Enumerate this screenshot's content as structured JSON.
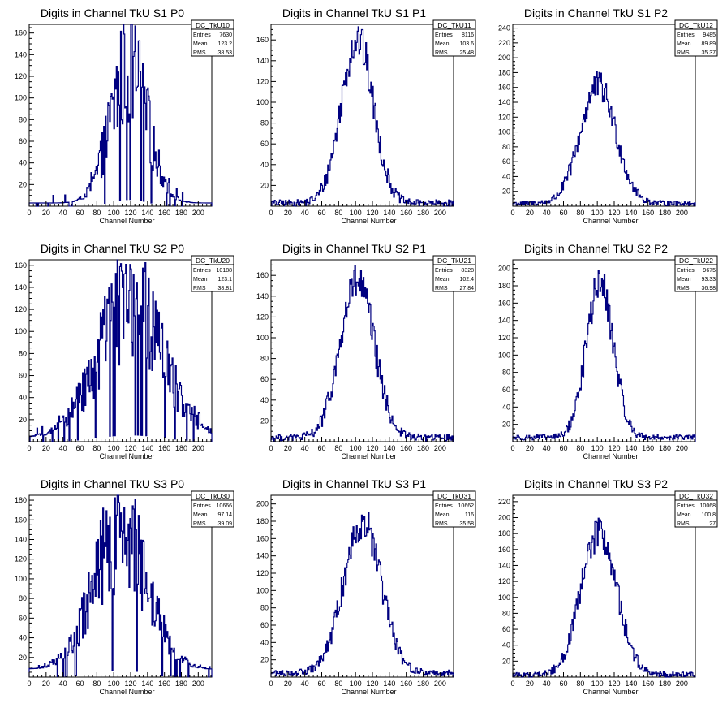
{
  "chart_data": [
    {
      "type": "histogram",
      "title": "Digits in Channel TkU S1 P0",
      "xlabel": "Channel Number",
      "xlim": [
        0,
        216
      ],
      "ylim": [
        0,
        168
      ],
      "xticks": [
        0,
        20,
        40,
        60,
        80,
        100,
        120,
        140,
        160,
        180,
        200
      ],
      "yticks": [
        20,
        40,
        60,
        80,
        100,
        120,
        140,
        160
      ],
      "stats": {
        "name": "DC_TkU10",
        "entries": "7630",
        "mean": "123.2",
        "rms": "38.53"
      },
      "shape": {
        "kind": "spiky",
        "mu": 118,
        "sigma": 22,
        "peak": 125,
        "base": 3
      }
    },
    {
      "type": "histogram",
      "title": "Digits in Channel TkU S1 P1",
      "xlabel": "Channel Number",
      "xlim": [
        0,
        216
      ],
      "ylim": [
        0,
        175
      ],
      "xticks": [
        0,
        20,
        40,
        60,
        80,
        100,
        120,
        140,
        160,
        180,
        200
      ],
      "yticks": [
        20,
        40,
        60,
        80,
        100,
        120,
        140,
        160
      ],
      "stats": {
        "name": "DC_TkU11",
        "entries": "8116",
        "mean": "103.6",
        "rms": "25.48"
      },
      "shape": {
        "kind": "gauss",
        "mu": 102,
        "sigma": 19,
        "peak": 158,
        "base": 3
      }
    },
    {
      "type": "histogram",
      "title": "Digits in Channel TkU S1 P2",
      "xlabel": "Channel Number",
      "xlim": [
        0,
        216
      ],
      "ylim": [
        0,
        245
      ],
      "xticks": [
        0,
        20,
        40,
        60,
        80,
        100,
        120,
        140,
        160,
        180,
        200
      ],
      "yticks": [
        20,
        40,
        60,
        80,
        100,
        120,
        140,
        160,
        180,
        200,
        220,
        240
      ],
      "stats": {
        "name": "DC_TkU12",
        "entries": "9485",
        "mean": "89.89",
        "rms": "35.37"
      },
      "shape": {
        "kind": "gauss",
        "mu": 101,
        "sigma": 21,
        "peak": 158,
        "base": 4
      }
    },
    {
      "type": "histogram",
      "title": "Digits in Channel TkU S2 P0",
      "xlabel": "Channel Number",
      "xlim": [
        0,
        216
      ],
      "ylim": [
        0,
        165
      ],
      "xticks": [
        0,
        20,
        40,
        60,
        80,
        100,
        120,
        140,
        160,
        180,
        200
      ],
      "yticks": [
        20,
        40,
        60,
        80,
        100,
        120,
        140,
        160
      ],
      "stats": {
        "name": "DC_TkU20",
        "entries": "10188",
        "mean": "123.1",
        "rms": "38.81"
      },
      "shape": {
        "kind": "spiky",
        "mu": 120,
        "sigma": 38,
        "peak": 122,
        "base": 4
      }
    },
    {
      "type": "histogram",
      "title": "Digits in Channel TkU S2 P1",
      "xlabel": "Channel Number",
      "xlim": [
        0,
        216
      ],
      "ylim": [
        0,
        175
      ],
      "xticks": [
        0,
        20,
        40,
        60,
        80,
        100,
        120,
        140,
        160,
        180,
        200
      ],
      "yticks": [
        20,
        40,
        60,
        80,
        100,
        120,
        140,
        160
      ],
      "stats": {
        "name": "DC_TkU21",
        "entries": "8328",
        "mean": "102.4",
        "rms": "27.84"
      },
      "shape": {
        "kind": "gauss",
        "mu": 102,
        "sigma": 20,
        "peak": 150,
        "base": 4
      }
    },
    {
      "type": "histogram",
      "title": "Digits in Channel TkU S2 P2",
      "xlabel": "Channel Number",
      "xlim": [
        0,
        216
      ],
      "ylim": [
        0,
        210
      ],
      "xticks": [
        0,
        20,
        40,
        60,
        80,
        100,
        120,
        140,
        160,
        180,
        200
      ],
      "yticks": [
        20,
        40,
        60,
        80,
        100,
        120,
        140,
        160,
        180,
        200
      ],
      "stats": {
        "name": "DC_TkU22",
        "entries": "9675",
        "mean": "93.33",
        "rms": "36.98"
      },
      "shape": {
        "kind": "gauss",
        "mu": 103,
        "sigma": 16,
        "peak": 178,
        "base": 5
      }
    },
    {
      "type": "histogram",
      "title": "Digits in Channel TkU S3 P0",
      "xlabel": "Channel Number",
      "xlim": [
        0,
        216
      ],
      "ylim": [
        0,
        185
      ],
      "xticks": [
        0,
        20,
        40,
        60,
        80,
        100,
        120,
        140,
        160,
        180,
        200
      ],
      "yticks": [
        20,
        40,
        60,
        80,
        100,
        120,
        140,
        160,
        180
      ],
      "stats": {
        "name": "DC_TkU30",
        "entries": "10666",
        "mean": "97.14",
        "rms": "39.09"
      },
      "shape": {
        "kind": "spiky",
        "mu": 108,
        "sigma": 32,
        "peak": 140,
        "base": 8
      }
    },
    {
      "type": "histogram",
      "title": "Digits in Channel TkU S3 P1",
      "xlabel": "Channel Number",
      "xlim": [
        0,
        216
      ],
      "ylim": [
        0,
        210
      ],
      "xticks": [
        0,
        20,
        40,
        60,
        80,
        100,
        120,
        140,
        160,
        180,
        200
      ],
      "yticks": [
        20,
        40,
        60,
        80,
        100,
        120,
        140,
        160,
        180,
        200
      ],
      "stats": {
        "name": "DC_TkU31",
        "entries": "10662",
        "mean": "116",
        "rms": "35.58"
      },
      "shape": {
        "kind": "gauss",
        "mu": 108,
        "sigma": 22,
        "peak": 175,
        "base": 5
      }
    },
    {
      "type": "histogram",
      "title": "Digits in Channel TkU S3 P2",
      "xlabel": "Channel Number",
      "xlim": [
        0,
        216
      ],
      "ylim": [
        0,
        228
      ],
      "xticks": [
        0,
        20,
        40,
        60,
        80,
        100,
        120,
        140,
        160,
        180,
        200
      ],
      "yticks": [
        20,
        40,
        60,
        80,
        100,
        120,
        140,
        160,
        180,
        200,
        220
      ],
      "stats": {
        "name": "DC_TkU32",
        "entries": "10068",
        "mean": "100.8",
        "rms": "27"
      },
      "shape": {
        "kind": "gauss",
        "mu": 102,
        "sigma": 21,
        "peak": 178,
        "base": 3
      }
    }
  ],
  "stats_labels": {
    "entries": "Entries",
    "mean": "Mean",
    "rms": "RMS"
  },
  "colors": {
    "line": "#000080",
    "frame": "#000000",
    "background": "#ffffff"
  }
}
